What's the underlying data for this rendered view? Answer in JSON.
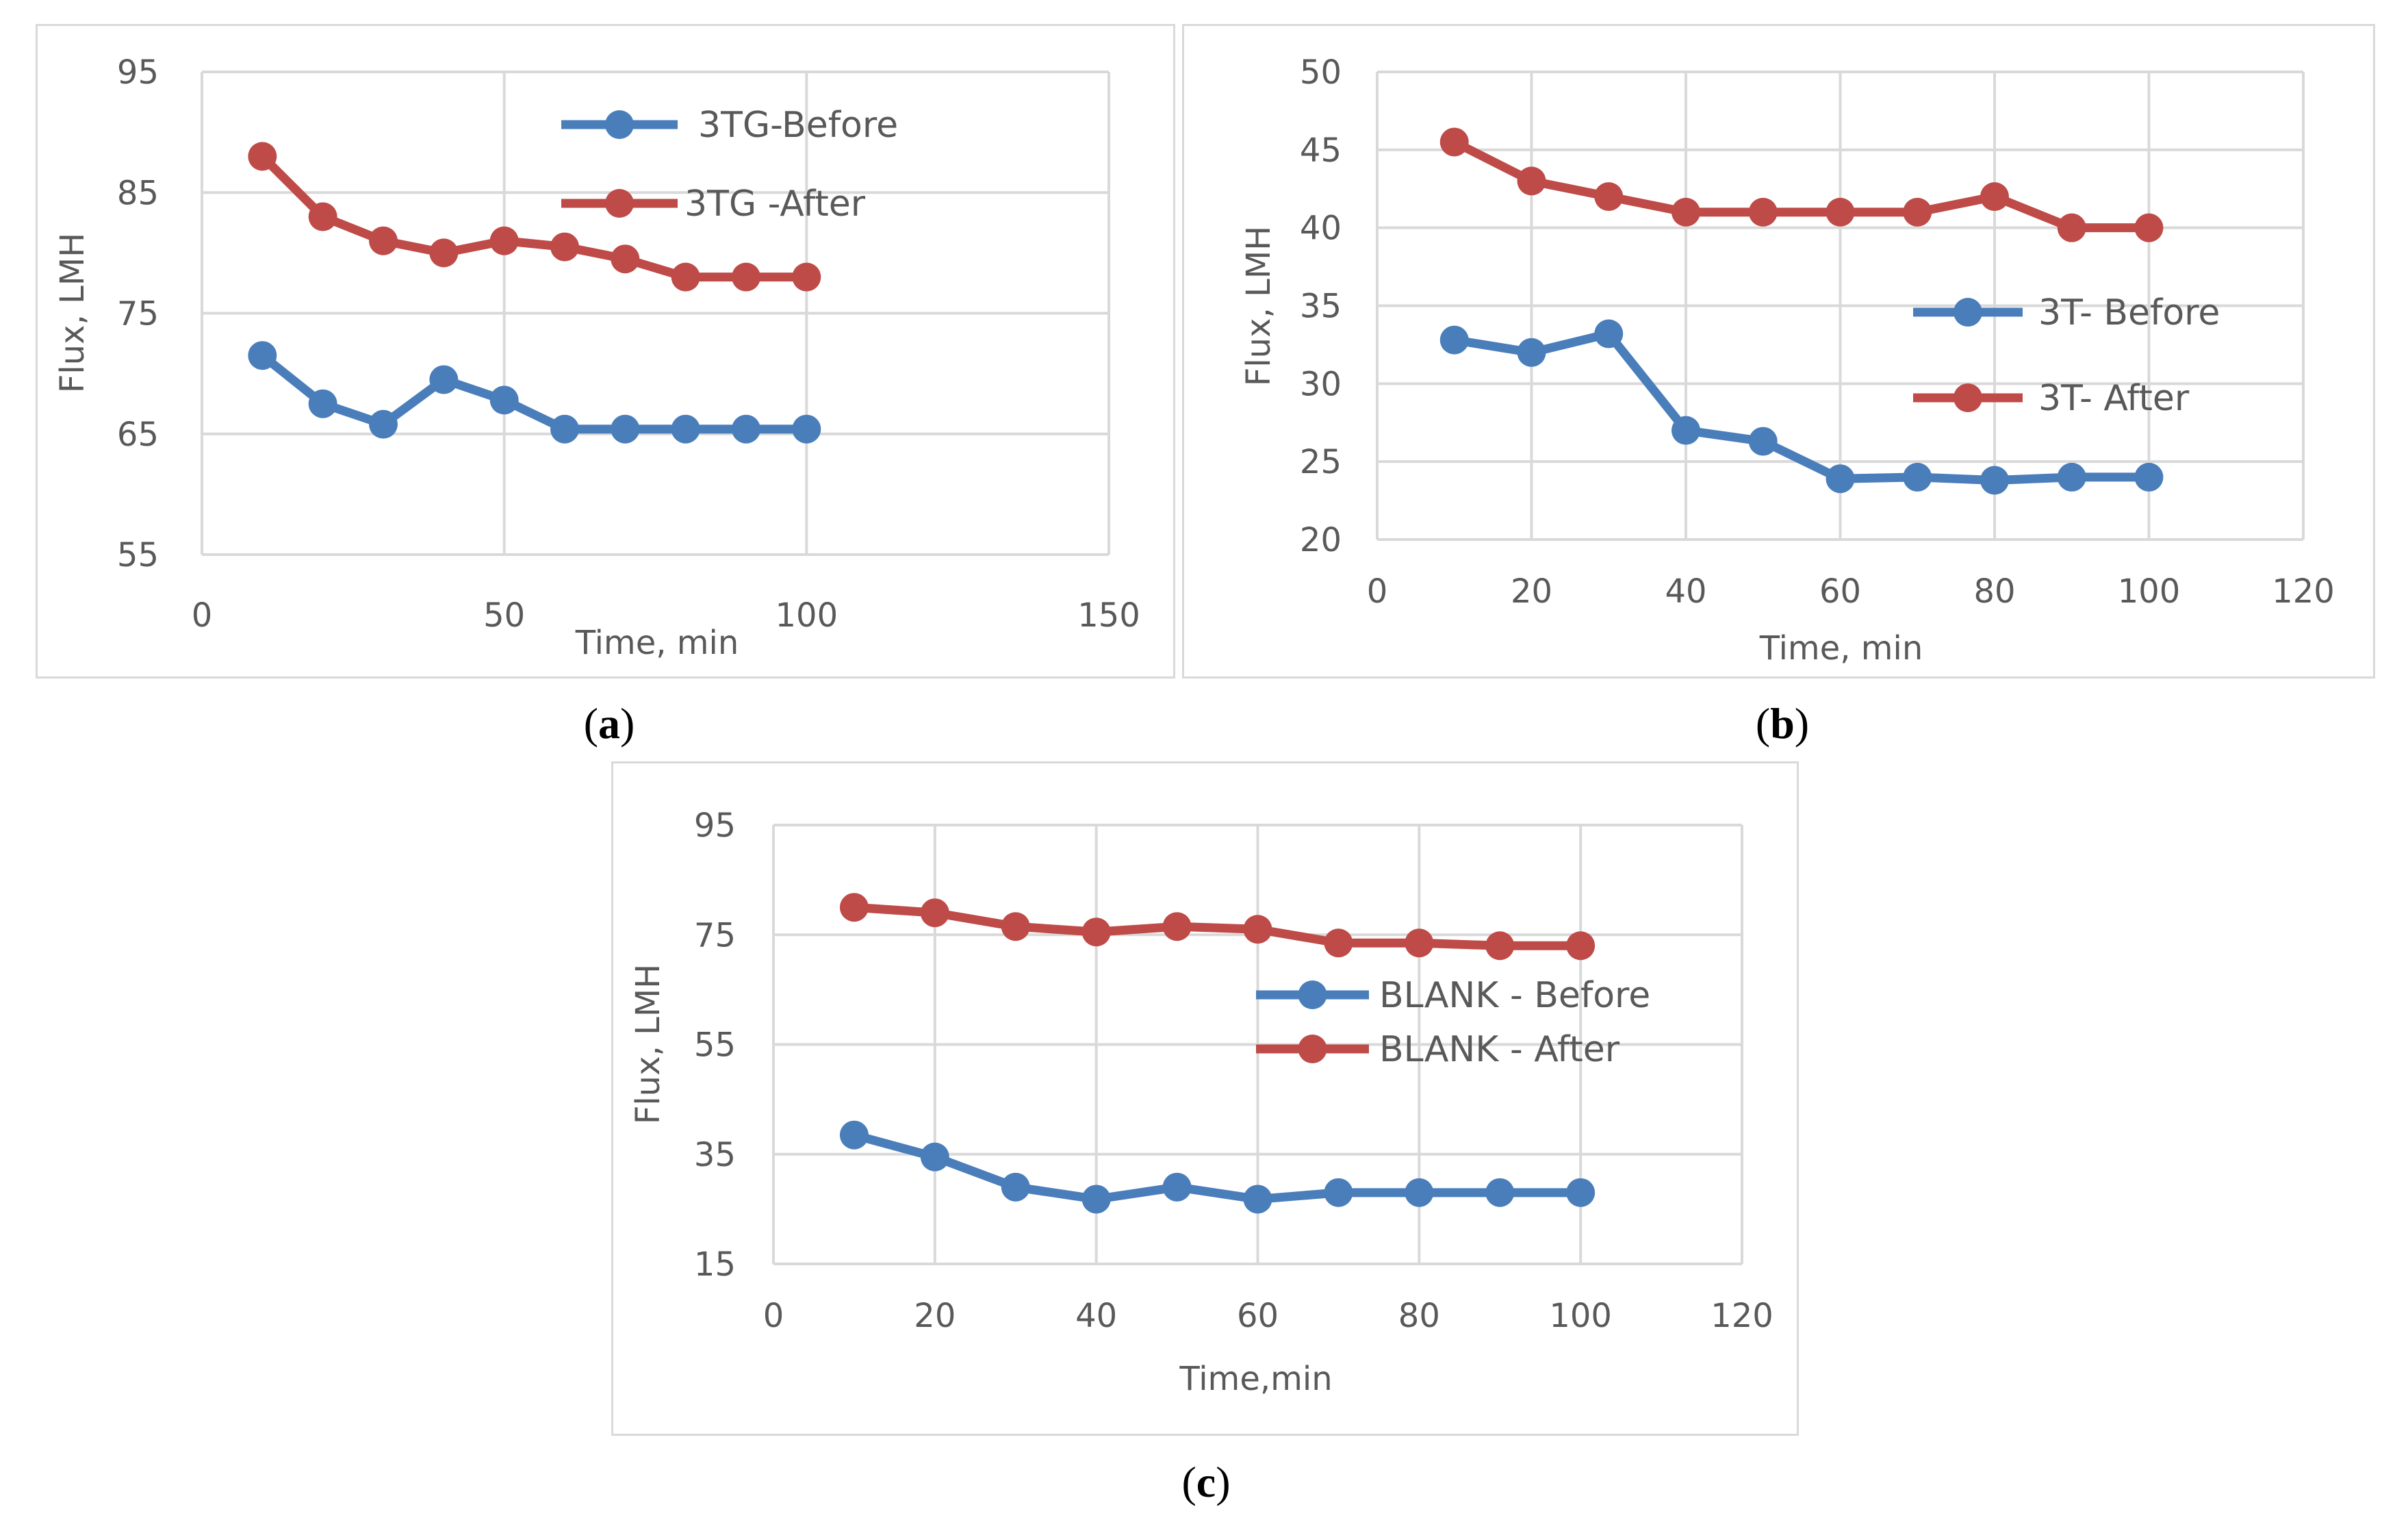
{
  "captions": [
    "a",
    "b",
    "c"
  ],
  "chart_data": [
    {
      "type": "line",
      "panel": "a",
      "xlabel": "Time, min",
      "ylabel": "Flux, LMH",
      "xlim": [
        0,
        150
      ],
      "ylim": [
        55,
        95
      ],
      "xticks": [
        0,
        50,
        100,
        150
      ],
      "yticks": [
        55,
        65,
        75,
        85,
        95
      ],
      "x": [
        10,
        20,
        30,
        40,
        50,
        60,
        70,
        80,
        90,
        100
      ],
      "series": [
        {
          "name": "3TG-Before",
          "color": "#4a7ebb",
          "values": [
            71.5,
            67.5,
            65.8,
            69.5,
            67.8,
            65.4,
            65.4,
            65.4,
            65.4,
            65.4
          ]
        },
        {
          "name": "3TG -After",
          "color": "#be4b48",
          "values": [
            88,
            83,
            81,
            80,
            81,
            80.5,
            79.5,
            78,
            78,
            78
          ]
        }
      ],
      "legend": "top-center"
    },
    {
      "type": "line",
      "panel": "b",
      "xlabel": "Time, min",
      "ylabel": "Flux, LMH",
      "xlim": [
        0,
        120
      ],
      "ylim": [
        20,
        50
      ],
      "xticks": [
        0,
        20,
        40,
        60,
        80,
        100,
        120
      ],
      "yticks": [
        20,
        25,
        30,
        35,
        40,
        45,
        50
      ],
      "x": [
        10,
        20,
        30,
        40,
        50,
        60,
        70,
        80,
        90,
        100
      ],
      "series": [
        {
          "name": "3T- Before",
          "color": "#4a7ebb",
          "values": [
            32.8,
            32,
            33.2,
            27,
            26.3,
            23.9,
            24,
            23.8,
            24,
            24
          ]
        },
        {
          "name": "3T- After",
          "color": "#be4b48",
          "values": [
            45.5,
            43,
            42,
            41,
            41,
            41,
            41,
            42,
            40,
            40
          ]
        }
      ],
      "legend": "right"
    },
    {
      "type": "line",
      "panel": "c",
      "xlabel": "Time,min",
      "ylabel": "Flux, LMH",
      "xlim": [
        0,
        120
      ],
      "ylim": [
        15,
        95
      ],
      "xticks": [
        0,
        20,
        40,
        60,
        80,
        100,
        120
      ],
      "yticks": [
        15,
        35,
        55,
        75,
        95
      ],
      "x": [
        10,
        20,
        30,
        40,
        50,
        60,
        70,
        80,
        90,
        100
      ],
      "series": [
        {
          "name": "BLANK - Before",
          "color": "#4a7ebb",
          "values": [
            38.5,
            34.5,
            29,
            26.8,
            29,
            26.8,
            28,
            28,
            28,
            28
          ]
        },
        {
          "name": "BLANK - After",
          "color": "#be4b48",
          "values": [
            80,
            79,
            76.5,
            75.5,
            76.5,
            76,
            73.5,
            73.5,
            73,
            73
          ]
        }
      ],
      "legend": "center-right"
    }
  ]
}
